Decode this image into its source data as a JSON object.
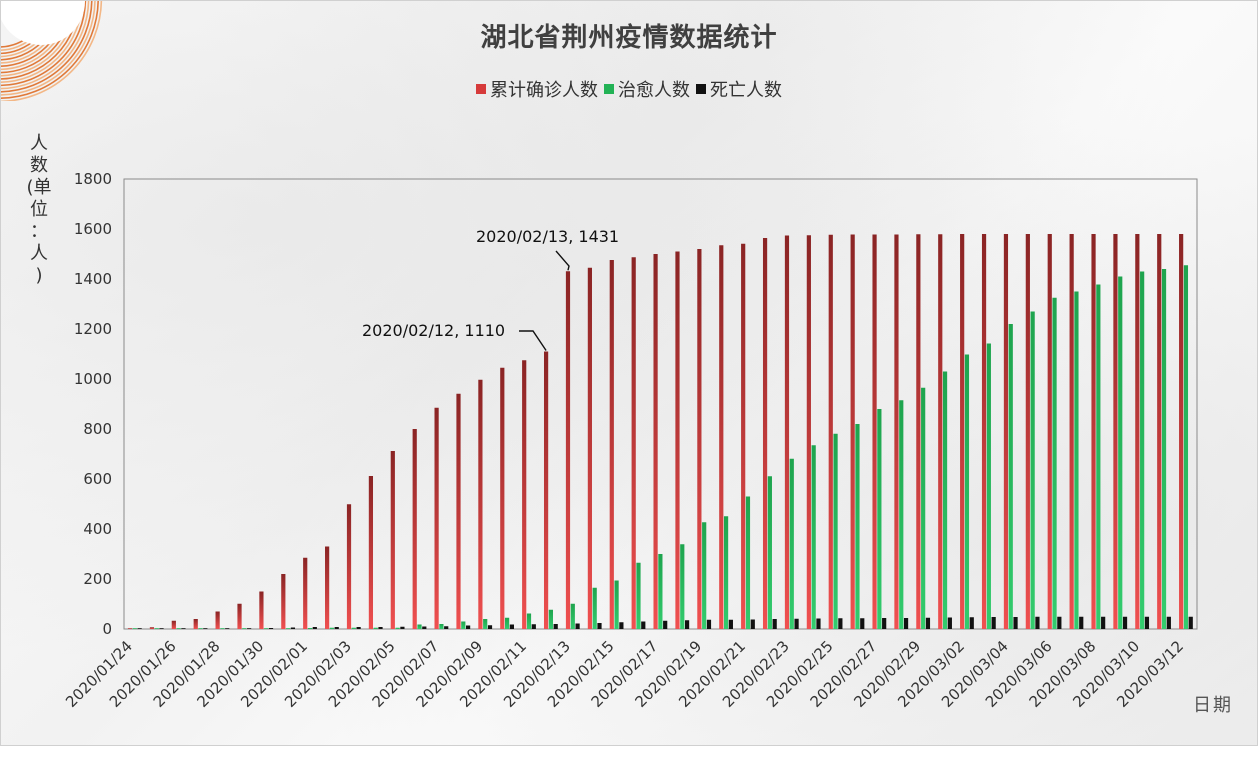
{
  "title": "湖北省荆州疫情数据统计",
  "legend": [
    {
      "label": "累计确诊人数",
      "color": "#d63a3a"
    },
    {
      "label": "治愈人数",
      "color": "#22b255"
    },
    {
      "label": "死亡人数",
      "color": "#111111"
    }
  ],
  "ylabel_chars": [
    "人",
    "数",
    "(单",
    "位",
    "：",
    "人",
    ")"
  ],
  "xlabel": "日期",
  "annotations": [
    {
      "label": "2020/02/12, 1110"
    },
    {
      "label": "2020/02/13, 1431"
    }
  ],
  "chart_data": {
    "type": "bar",
    "title": "湖北省荆州疫情数据统计",
    "xlabel": "日期",
    "ylabel": "人数(单位：人)",
    "ylim": [
      0,
      1800
    ],
    "yticks": [
      0,
      200,
      400,
      600,
      800,
      1000,
      1200,
      1400,
      1600,
      1800
    ],
    "x_tick_labels": [
      "2020/01/24",
      "2020/01/26",
      "2020/01/28",
      "2020/01/30",
      "2020/02/01",
      "2020/02/03",
      "2020/02/05",
      "2020/02/07",
      "2020/02/09",
      "2020/02/11",
      "2020/02/13",
      "2020/02/15",
      "2020/02/17",
      "2020/02/19",
      "2020/02/21",
      "2020/02/23",
      "2020/02/25",
      "2020/02/27",
      "2020/02/29",
      "2020/03/02",
      "2020/03/04",
      "2020/03/06",
      "2020/03/08",
      "2020/03/10",
      "2020/03/12"
    ],
    "categories": [
      "2020/01/24",
      "2020/01/25",
      "2020/01/26",
      "2020/01/27",
      "2020/01/28",
      "2020/01/29",
      "2020/01/30",
      "2020/01/31",
      "2020/02/01",
      "2020/02/02",
      "2020/02/03",
      "2020/02/04",
      "2020/02/05",
      "2020/02/06",
      "2020/02/07",
      "2020/02/08",
      "2020/02/09",
      "2020/02/10",
      "2020/02/11",
      "2020/02/12",
      "2020/02/13",
      "2020/02/14",
      "2020/02/15",
      "2020/02/16",
      "2020/02/17",
      "2020/02/18",
      "2020/02/19",
      "2020/02/20",
      "2020/02/21",
      "2020/02/22",
      "2020/02/23",
      "2020/02/24",
      "2020/02/25",
      "2020/02/26",
      "2020/02/27",
      "2020/02/28",
      "2020/02/29",
      "2020/03/01",
      "2020/03/02",
      "2020/03/03",
      "2020/03/04",
      "2020/03/05",
      "2020/03/06",
      "2020/03/07",
      "2020/03/08",
      "2020/03/09",
      "2020/03/10",
      "2020/03/11",
      "2020/03/12"
    ],
    "series": [
      {
        "name": "累计确诊人数",
        "color": "#d63a3a",
        "values": [
          2,
          7,
          33,
          40,
          70,
          101,
          150,
          220,
          285,
          330,
          499,
          612,
          712,
          800,
          885,
          941,
          997,
          1045,
          1075,
          1110,
          1431,
          1445,
          1476,
          1487,
          1500,
          1510,
          1520,
          1535,
          1541,
          1564,
          1574,
          1575,
          1577,
          1578,
          1578,
          1578,
          1579,
          1579,
          1580,
          1580,
          1580,
          1580,
          1580,
          1580,
          1580,
          1580,
          1580,
          1580,
          1580
        ]
      },
      {
        "name": "治愈人数",
        "color": "#22b255",
        "values": [
          0,
          0,
          0,
          2,
          2,
          3,
          3,
          3,
          4,
          5,
          5,
          5,
          5,
          18,
          20,
          30,
          40,
          45,
          62,
          77,
          101,
          165,
          194,
          265,
          300,
          339,
          427,
          451,
          530,
          611,
          681,
          735,
          781,
          820,
          880,
          915,
          965,
          1030,
          1098,
          1142,
          1220,
          1270,
          1325,
          1350,
          1378,
          1410,
          1430,
          1440,
          1455
        ]
      },
      {
        "name": "死亡人数",
        "color": "#111111",
        "values": [
          0,
          0,
          0,
          0,
          1,
          2,
          4,
          6,
          8,
          8,
          8,
          8,
          9,
          10,
          11,
          14,
          15,
          18,
          19,
          20,
          22,
          24,
          27,
          30,
          33,
          35,
          37,
          37,
          38,
          40,
          41,
          42,
          43,
          43,
          44,
          44,
          45,
          46,
          47,
          48,
          48,
          49,
          49,
          49,
          49,
          49,
          49,
          49,
          49
        ]
      }
    ]
  }
}
